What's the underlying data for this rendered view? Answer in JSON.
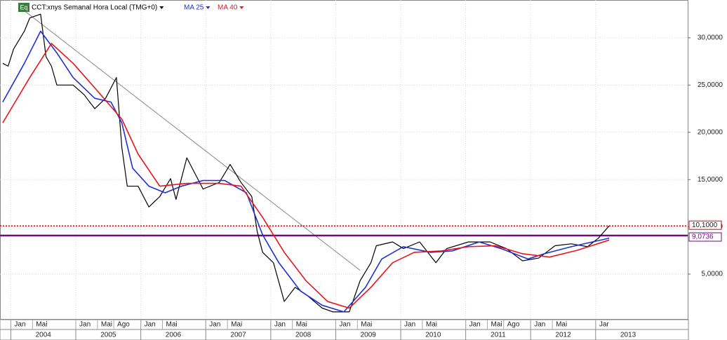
{
  "chart_data": {
    "type": "line",
    "badge": "Eq",
    "xlim": [
      "2003-11",
      "2014-06"
    ],
    "ylim": [
      0.25,
      34
    ],
    "yticks": [
      {
        "value": 5,
        "label": "5,0000"
      },
      {
        "value": 10,
        "label": "10,0000"
      },
      {
        "value": 15,
        "label": "15,0000"
      },
      {
        "value": 20,
        "label": "20,0000"
      },
      {
        "value": 25,
        "label": "25,0000"
      },
      {
        "value": 30,
        "label": "30,0000"
      }
    ],
    "xticks": [
      {
        "value": "2004-01",
        "label": "Jan"
      },
      {
        "value": "2004-05",
        "label": "Mai"
      },
      {
        "value": "2005-01",
        "label": "Jan"
      },
      {
        "value": "2005-05",
        "label": "Mai"
      },
      {
        "value": "2005-08",
        "label": "Ago"
      },
      {
        "value": "2006-01",
        "label": "Jan"
      },
      {
        "value": "2006-05",
        "label": "Mai"
      },
      {
        "value": "2007-01",
        "label": "Jan"
      },
      {
        "value": "2007-05",
        "label": "Mai"
      },
      {
        "value": "2008-01",
        "label": "Jan"
      },
      {
        "value": "2008-05",
        "label": "Mai"
      },
      {
        "value": "2009-01",
        "label": "Jan"
      },
      {
        "value": "2009-05",
        "label": "Mai"
      },
      {
        "value": "2010-01",
        "label": "Jan"
      },
      {
        "value": "2010-05",
        "label": "Mai"
      },
      {
        "value": "2011-01",
        "label": "Jan"
      },
      {
        "value": "2011-05",
        "label": "Mai"
      },
      {
        "value": "2011-08",
        "label": "Ago"
      },
      {
        "value": "2012-01",
        "label": "Jan"
      },
      {
        "value": "2012-05",
        "label": "Mai"
      },
      {
        "value": "2013-01",
        "label": "Jar"
      }
    ],
    "years": [
      {
        "value": "2004-01",
        "label": "2004"
      },
      {
        "value": "2005-01",
        "label": "2005"
      },
      {
        "value": "2006-01",
        "label": "2006"
      },
      {
        "value": "2007-01",
        "label": "2007"
      },
      {
        "value": "2008-01",
        "label": "2008"
      },
      {
        "value": "2009-01",
        "label": "2009"
      },
      {
        "value": "2010-01",
        "label": "2010"
      },
      {
        "value": "2011-01",
        "label": "2011"
      },
      {
        "value": "2012-01",
        "label": "2012"
      },
      {
        "value": "2013-01",
        "label": "2013"
      }
    ],
    "grid": true,
    "series": [
      {
        "name": "CCT:xnys Semanal Hora Local (TMG+0)",
        "color": "#000000",
        "x": [
          "2003-11",
          "2003-12",
          "2004-01",
          "2004-03",
          "2004-04",
          "2004-06",
          "2004-07",
          "2004-08",
          "2004-09",
          "2004-12",
          "2005-02",
          "2005-04",
          "2005-06",
          "2005-08",
          "2005-09",
          "2005-10",
          "2005-12",
          "2006-02",
          "2006-04",
          "2006-06",
          "2006-07",
          "2006-09",
          "2006-12",
          "2007-03",
          "2007-05",
          "2007-07",
          "2007-09",
          "2007-10",
          "2007-11",
          "2008-01",
          "2008-03",
          "2008-05",
          "2008-07",
          "2008-10",
          "2008-12",
          "2009-03",
          "2009-05",
          "2009-07",
          "2009-08",
          "2009-11",
          "2010-01",
          "2010-04",
          "2010-07",
          "2010-09",
          "2011-01",
          "2011-05",
          "2011-08",
          "2011-11",
          "2012-02",
          "2012-05",
          "2012-08",
          "2012-11",
          "2013-01",
          "2013-03"
        ],
        "values": [
          27.3,
          27,
          28.8,
          30.7,
          32.1,
          32.5,
          28,
          27,
          25,
          25,
          24,
          22.5,
          23.6,
          25.8,
          18.4,
          14.3,
          14.3,
          12.1,
          13.2,
          15.1,
          12.9,
          17.3,
          14,
          14.7,
          16.6,
          14.7,
          13.2,
          9.5,
          7.3,
          6.2,
          2.1,
          3.6,
          2.85,
          1.4,
          1,
          1,
          4.3,
          6.2,
          8,
          8.4,
          7.7,
          8.4,
          6.2,
          7.7,
          8.4,
          8.4,
          7.7,
          6.4,
          6.7,
          8,
          8.2,
          7.9,
          8.8,
          10.1
        ]
      },
      {
        "name": "MA 25",
        "color": "#1f2fd6",
        "x": [
          "2003-11",
          "2004-03",
          "2004-06",
          "2004-09",
          "2004-12",
          "2005-04",
          "2005-07",
          "2005-09",
          "2005-11",
          "2006-02",
          "2006-05",
          "2006-08",
          "2006-12",
          "2007-04",
          "2007-08",
          "2007-11",
          "2008-02",
          "2008-06",
          "2008-10",
          "2009-02",
          "2009-06",
          "2009-09",
          "2010-01",
          "2010-06",
          "2010-10",
          "2011-03",
          "2011-07",
          "2011-12",
          "2012-03",
          "2012-08",
          "2013-03"
        ],
        "values": [
          23.2,
          27.3,
          30.7,
          28.4,
          25.8,
          23.6,
          23.2,
          21,
          16.2,
          14.3,
          13.6,
          14.3,
          14.9,
          14.9,
          13.6,
          9.15,
          6.2,
          3.2,
          1.7,
          1,
          3.6,
          6.6,
          7.9,
          7.3,
          7.45,
          8.4,
          7.7,
          6.6,
          7.15,
          7.9,
          8.8
        ]
      },
      {
        "name": "MA 40",
        "color": "#e8141c",
        "x": [
          "2003-11",
          "2004-04",
          "2004-08",
          "2004-12",
          "2005-04",
          "2005-09",
          "2005-12",
          "2006-04",
          "2006-09",
          "2007-03",
          "2007-07",
          "2007-11",
          "2008-03",
          "2008-07",
          "2008-11",
          "2009-03",
          "2009-07",
          "2009-11",
          "2010-03",
          "2010-08",
          "2011-01",
          "2011-06",
          "2011-11",
          "2012-04",
          "2012-09",
          "2013-03"
        ],
        "values": [
          21,
          25.8,
          29.4,
          27.3,
          24.7,
          21.4,
          17.7,
          14.3,
          14.6,
          14.6,
          14.3,
          11,
          7.3,
          4.3,
          2.1,
          1.4,
          3.6,
          6.2,
          7.3,
          7.45,
          7.9,
          8,
          7.15,
          6.8,
          7.5,
          8.6
        ]
      }
    ],
    "trendline": {
      "color": "#888888",
      "x": [
        "2004-02",
        "2009-05"
      ],
      "values": [
        33.3,
        5.4
      ]
    },
    "levels": [
      {
        "value": 10.1,
        "label": "10,1000",
        "color": "#e00000",
        "style": "dotted"
      },
      {
        "value": 9.0736,
        "label": "9,0736",
        "color": "#6a0f7a",
        "style": "solid"
      }
    ]
  }
}
